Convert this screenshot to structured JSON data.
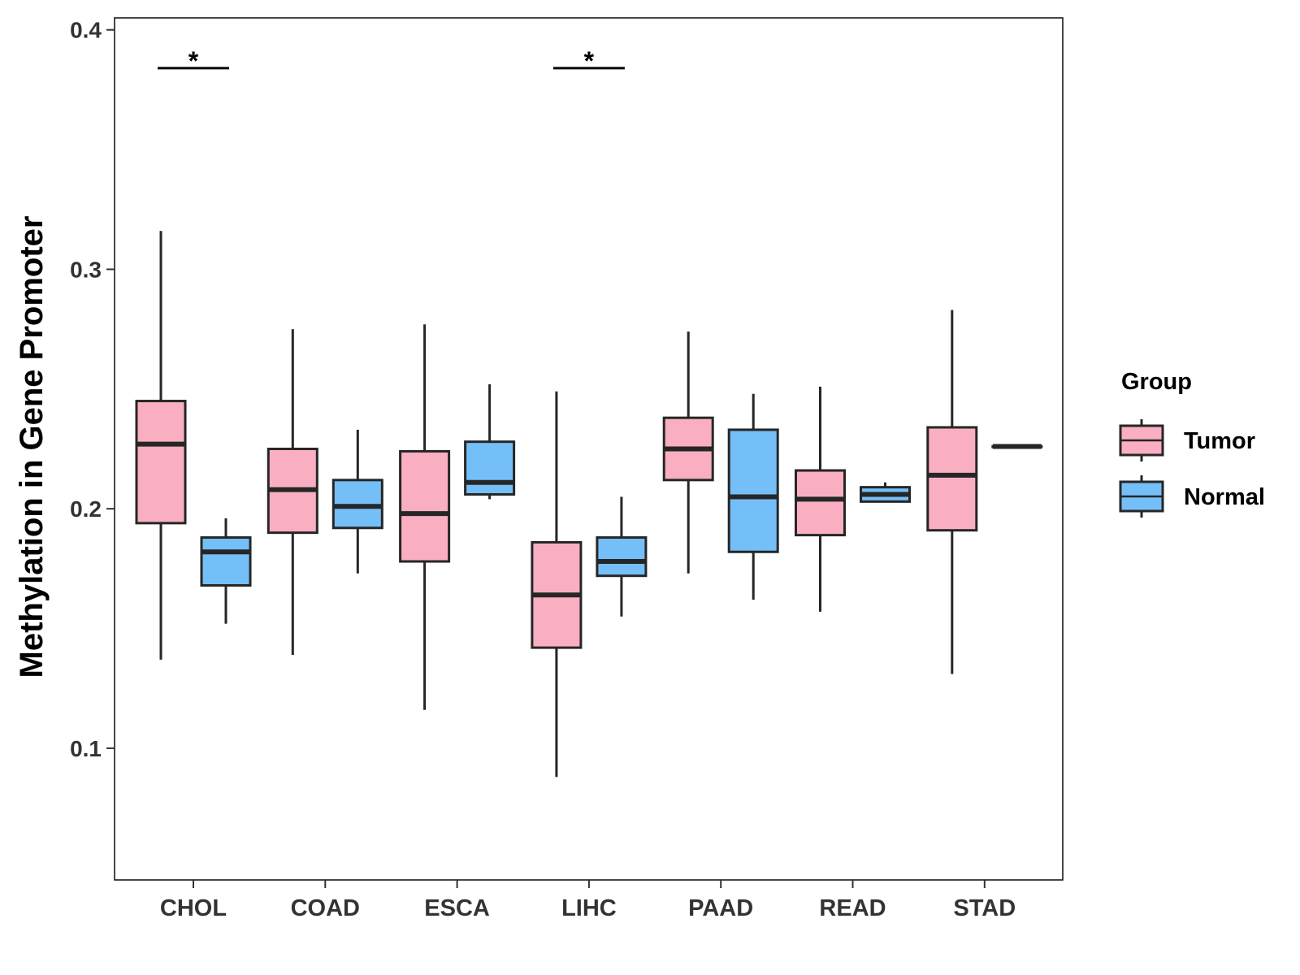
{
  "chart_data": {
    "type": "boxplot",
    "title": "",
    "xlabel": "",
    "ylabel": "Methylation in Gene Promoter",
    "ylim": [
      0.045,
      0.405
    ],
    "yticks": [
      0.1,
      0.2,
      0.3,
      0.4
    ],
    "ytick_labels": [
      "0.1",
      "0.2",
      "0.3",
      "0.4"
    ],
    "categories": [
      "CHOL",
      "COAD",
      "ESCA",
      "LIHC",
      "PAAD",
      "READ",
      "STAD"
    ],
    "legend": {
      "title": "Group",
      "position": "right",
      "entries": [
        {
          "name": "Tumor",
          "color": "#F9AFC1"
        },
        {
          "name": "Normal",
          "color": "#74BFF7"
        }
      ]
    },
    "series": [
      {
        "name": "Tumor",
        "color": "#F9AFC1",
        "boxes": [
          {
            "min": 0.137,
            "q1": 0.194,
            "median": 0.227,
            "q3": 0.245,
            "max": 0.316
          },
          {
            "min": 0.139,
            "q1": 0.19,
            "median": 0.208,
            "q3": 0.225,
            "max": 0.275
          },
          {
            "min": 0.116,
            "q1": 0.178,
            "median": 0.198,
            "q3": 0.224,
            "max": 0.277
          },
          {
            "min": 0.088,
            "q1": 0.142,
            "median": 0.164,
            "q3": 0.186,
            "max": 0.249
          },
          {
            "min": 0.173,
            "q1": 0.212,
            "median": 0.225,
            "q3": 0.238,
            "max": 0.274
          },
          {
            "min": 0.157,
            "q1": 0.189,
            "median": 0.204,
            "q3": 0.216,
            "max": 0.251
          },
          {
            "min": 0.131,
            "q1": 0.191,
            "median": 0.214,
            "q3": 0.234,
            "max": 0.283
          }
        ]
      },
      {
        "name": "Normal",
        "color": "#74BFF7",
        "boxes": [
          {
            "min": 0.152,
            "q1": 0.168,
            "median": 0.182,
            "q3": 0.188,
            "max": 0.196
          },
          {
            "min": 0.173,
            "q1": 0.192,
            "median": 0.201,
            "q3": 0.212,
            "max": 0.233
          },
          {
            "min": 0.204,
            "q1": 0.206,
            "median": 0.211,
            "q3": 0.228,
            "max": 0.252
          },
          {
            "min": 0.155,
            "q1": 0.172,
            "median": 0.178,
            "q3": 0.188,
            "max": 0.205
          },
          {
            "min": 0.162,
            "q1": 0.182,
            "median": 0.205,
            "q3": 0.233,
            "max": 0.248
          },
          {
            "min": 0.203,
            "q1": 0.203,
            "median": 0.206,
            "q3": 0.209,
            "max": 0.211
          },
          {
            "min": 0.226,
            "q1": 0.226,
            "median": 0.226,
            "q3": 0.226,
            "max": 0.226
          }
        ]
      }
    ],
    "significance": [
      {
        "category": "CHOL",
        "label": "*",
        "y": 0.384
      },
      {
        "category": "LIHC",
        "label": "*",
        "y": 0.384
      }
    ]
  }
}
